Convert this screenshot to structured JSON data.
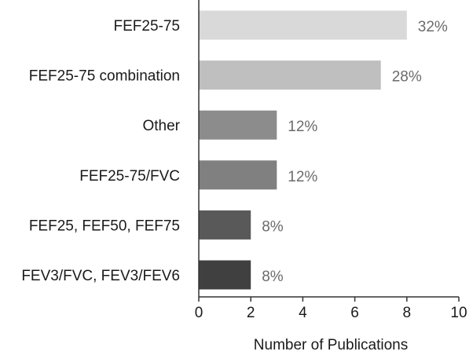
{
  "chart_data": {
    "type": "bar",
    "orientation": "horizontal",
    "categories": [
      "FEF25-75",
      "FEF25-75 combination",
      "Other",
      "FEF25-75/FVC",
      "FEF25, FEF50, FEF75",
      "FEV3/FVC, FEV3/FEV6"
    ],
    "values": [
      8,
      7,
      3,
      3,
      2,
      2
    ],
    "data_labels": [
      "32%",
      "28%",
      "12%",
      "12%",
      "8%",
      "8%"
    ],
    "bar_colors": [
      "#d9d9d9",
      "#bfbfbf",
      "#8c8c8c",
      "#808080",
      "#595959",
      "#404040"
    ],
    "xlabel": "Number of Publications",
    "ylabel": "",
    "xlim": [
      0,
      10
    ],
    "xticks": [
      0,
      2,
      4,
      6,
      8,
      10
    ],
    "grid": false,
    "legend": "none"
  }
}
